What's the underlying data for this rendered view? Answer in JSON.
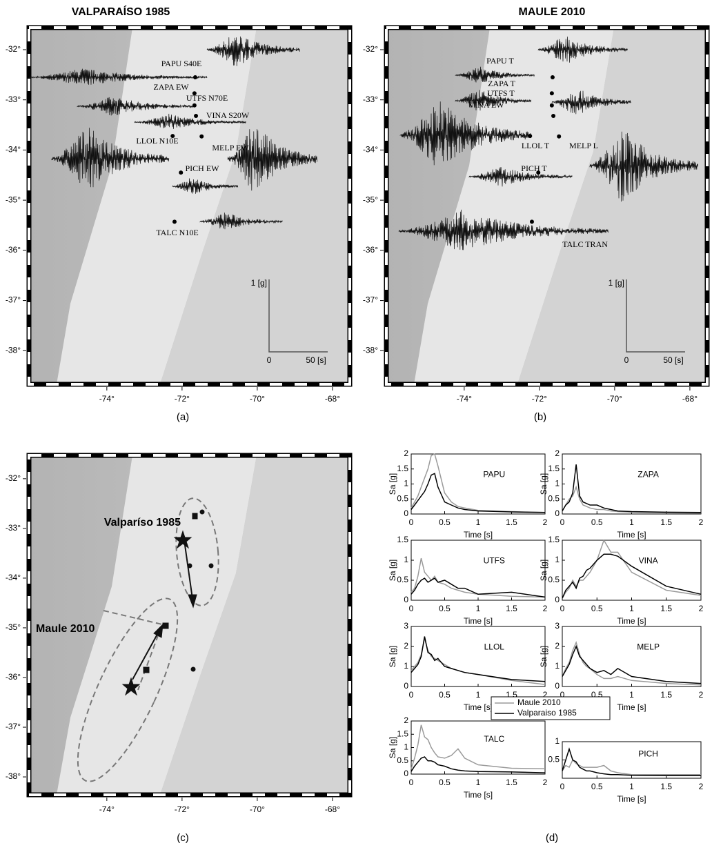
{
  "maps": [
    {
      "title": "VALPARAÍSO 1985",
      "label": "(a)",
      "xlim": [
        -76.07,
        -67.54
      ],
      "ylim": [
        -31.56,
        -38.67
      ],
      "xticks": [
        {
          "value": -74,
          "label": "-74°"
        },
        {
          "value": -72,
          "label": "-72°"
        },
        {
          "value": -70,
          "label": "-70°"
        },
        {
          "value": -68,
          "label": "-68°"
        }
      ],
      "yticks": [
        {
          "value": -32,
          "label": "-32°"
        },
        {
          "value": -33,
          "label": "-33°"
        },
        {
          "value": -34,
          "label": "-34°"
        },
        {
          "value": -35,
          "label": "-35°"
        },
        {
          "value": -36,
          "label": "-36°"
        },
        {
          "value": -37,
          "label": "-37°"
        },
        {
          "value": -38,
          "label": "-38°"
        }
      ],
      "scale": {
        "amplitude": "1 [g]",
        "origin": "0",
        "time": "50 [s]"
      },
      "stations": [
        {
          "label": "PAPU S40E",
          "lon": -71.65,
          "lat": -32.55
        },
        {
          "label": "ZAPA EW",
          "lon": -71.67,
          "lat": -32.87
        },
        {
          "label": "UTFS N70E",
          "lon": -71.67,
          "lat": -33.11
        },
        {
          "label": "VINA S20W",
          "lon": -71.63,
          "lat": -33.32
        },
        {
          "label": "LLOL N10E",
          "lon": -72.25,
          "lat": -33.72
        },
        {
          "label": "MELP EW",
          "lon": -71.48,
          "lat": -33.73
        },
        {
          "label": "PICH EW",
          "lon": -72.03,
          "lat": -34.45
        },
        {
          "label": "TALC N10E",
          "lon": -72.2,
          "lat": -35.43
        }
      ]
    },
    {
      "title": "MAULE 2010",
      "label": "(b)",
      "xlim": [
        -76.07,
        -67.54
      ],
      "ylim": [
        -31.56,
        -38.67
      ],
      "xticks": [
        {
          "value": -74,
          "label": "-74°"
        },
        {
          "value": -72,
          "label": "-72°"
        },
        {
          "value": -70,
          "label": "-70°"
        },
        {
          "value": -68,
          "label": "-68°"
        }
      ],
      "yticks": [
        {
          "value": -32,
          "label": "-32°"
        },
        {
          "value": -33,
          "label": "-33°"
        },
        {
          "value": -34,
          "label": "-34°"
        },
        {
          "value": -35,
          "label": "-35°"
        },
        {
          "value": -36,
          "label": "-36°"
        },
        {
          "value": -37,
          "label": "-37°"
        },
        {
          "value": -38,
          "label": "-38°"
        }
      ],
      "scale": {
        "amplitude": "1 [g]",
        "origin": "0",
        "time": "50 [s]"
      },
      "stations": [
        {
          "label": "PAPU T",
          "lon": -71.65,
          "lat": -32.55
        },
        {
          "label": "ZAPA T",
          "lon": -71.67,
          "lat": -32.87
        },
        {
          "label": "UTFS T",
          "lon": -71.67,
          "lat": -33.11
        },
        {
          "label": "VINA EW",
          "lon": -71.63,
          "lat": -33.32
        },
        {
          "label": "LLOL T",
          "lon": -72.25,
          "lat": -33.72
        },
        {
          "label": "MELP L",
          "lon": -71.48,
          "lat": -33.73
        },
        {
          "label": "PICH T",
          "lon": -72.03,
          "lat": -34.45
        },
        {
          "label": "TALC TRAN",
          "lon": -72.2,
          "lat": -35.43
        }
      ]
    },
    {
      "label": "(c)",
      "xlim": [
        -76.07,
        -67.54
      ],
      "ylim": [
        -31.53,
        -38.36
      ],
      "xticks": [
        {
          "value": -74,
          "label": "-74°"
        },
        {
          "value": -72,
          "label": "-72°"
        },
        {
          "value": -70,
          "label": "-70°"
        },
        {
          "value": -68,
          "label": "-68°"
        }
      ],
      "yticks": [
        {
          "value": -32,
          "label": "-32°"
        },
        {
          "value": -33,
          "label": "-33°"
        },
        {
          "value": -34,
          "label": "-34°"
        },
        {
          "value": -35,
          "label": "-35°"
        },
        {
          "value": -36,
          "label": "-36°"
        },
        {
          "value": -37,
          "label": "-37°"
        },
        {
          "value": -38,
          "label": "-38°"
        }
      ],
      "annotations": [
        "Valparíso 1985",
        "Maule 2010"
      ]
    }
  ],
  "panel_d": {
    "label": "(d)",
    "legend": [
      {
        "name": "Maule 2010",
        "color": "#9a9a9a"
      },
      {
        "name": "Valparaiso 1985",
        "color": "#000000"
      }
    ]
  },
  "chart_data": [
    {
      "type": "line",
      "title": "PAPU",
      "ylabel": "Sa [g]",
      "xlabel": "Time [s]",
      "x": [
        0,
        0.05,
        0.1,
        0.15,
        0.2,
        0.25,
        0.3,
        0.35,
        0.4,
        0.5,
        0.6,
        0.7,
        0.8,
        1,
        1.5,
        2
      ],
      "series": [
        {
          "values": [
            0.2,
            0.4,
            0.6,
            0.9,
            1.2,
            1.5,
            1.95,
            2.0,
            1.6,
            0.7,
            0.4,
            0.25,
            0.2,
            0.12,
            0.08,
            0.05
          ]
        },
        {
          "values": [
            0.15,
            0.3,
            0.45,
            0.6,
            0.75,
            1.0,
            1.3,
            1.35,
            0.9,
            0.4,
            0.3,
            0.2,
            0.15,
            0.1,
            0.07,
            0.05
          ]
        }
      ],
      "xlim": [
        0,
        2
      ],
      "xticks": [
        0,
        0.5,
        1,
        1.5,
        2
      ],
      "ylim": [
        0,
        2
      ],
      "yticks": [
        0,
        0.5,
        1,
        1.5,
        2
      ]
    },
    {
      "type": "line",
      "title": "ZAPA",
      "ylabel": "Sa [g]",
      "xlabel": "Time [s]",
      "x": [
        0,
        0.05,
        0.1,
        0.15,
        0.2,
        0.25,
        0.3,
        0.35,
        0.4,
        0.5,
        0.6,
        0.7,
        0.8,
        1,
        1.5,
        2
      ],
      "series": [
        {
          "values": [
            0.1,
            0.3,
            0.5,
            0.6,
            0.9,
            0.5,
            0.3,
            0.25,
            0.2,
            0.15,
            0.15,
            0.1,
            0.08,
            0.06,
            0.04,
            0.03
          ]
        },
        {
          "values": [
            0.1,
            0.3,
            0.4,
            0.7,
            1.65,
            0.6,
            0.4,
            0.35,
            0.3,
            0.3,
            0.2,
            0.15,
            0.1,
            0.08,
            0.06,
            0.05
          ]
        }
      ],
      "xlim": [
        0,
        2
      ],
      "xticks": [
        0,
        0.5,
        1,
        1.5,
        2
      ],
      "ylim": [
        0,
        2
      ],
      "yticks": [
        0,
        0.5,
        1,
        1.5,
        2
      ]
    },
    {
      "type": "line",
      "title": "UTFS",
      "ylabel": "Sa [g]",
      "xlabel": "Time [s]",
      "x": [
        0,
        0.05,
        0.1,
        0.15,
        0.2,
        0.25,
        0.3,
        0.35,
        0.4,
        0.5,
        0.6,
        0.7,
        0.8,
        1,
        1.5,
        2
      ],
      "series": [
        {
          "values": [
            0.2,
            0.3,
            0.6,
            1.05,
            0.7,
            0.6,
            0.5,
            0.6,
            0.45,
            0.4,
            0.3,
            0.25,
            0.2,
            0.15,
            0.1,
            0.08
          ]
        },
        {
          "values": [
            0.15,
            0.25,
            0.4,
            0.5,
            0.55,
            0.45,
            0.5,
            0.55,
            0.45,
            0.5,
            0.4,
            0.3,
            0.3,
            0.15,
            0.2,
            0.08
          ]
        }
      ],
      "xlim": [
        0,
        2
      ],
      "xticks": [
        0,
        0.5,
        1,
        1.5,
        2
      ],
      "ylim": [
        0,
        1.5
      ],
      "yticks": [
        0,
        0.5,
        1,
        1.5
      ]
    },
    {
      "type": "line",
      "title": "VINA",
      "ylabel": "Sa [g]",
      "xlabel": "Time [s]",
      "x": [
        0,
        0.05,
        0.1,
        0.15,
        0.2,
        0.25,
        0.3,
        0.35,
        0.4,
        0.5,
        0.6,
        0.7,
        0.8,
        1,
        1.5,
        2
      ],
      "series": [
        {
          "values": [
            0.05,
            0.2,
            0.3,
            0.5,
            0.35,
            0.5,
            0.5,
            0.6,
            0.7,
            1.0,
            1.5,
            1.2,
            1.2,
            0.7,
            0.25,
            0.12
          ]
        },
        {
          "values": [
            0.05,
            0.25,
            0.35,
            0.45,
            0.3,
            0.55,
            0.6,
            0.75,
            0.8,
            1.0,
            1.15,
            1.15,
            1.1,
            0.85,
            0.35,
            0.15
          ]
        }
      ],
      "xlim": [
        0,
        2
      ],
      "xticks": [
        0,
        0.5,
        1,
        1.5,
        2
      ],
      "ylim": [
        0,
        1.5
      ],
      "yticks": [
        0,
        0.5,
        1,
        1.5
      ]
    },
    {
      "type": "line",
      "title": "LLOL",
      "ylabel": "Sa [g]",
      "xlabel": "Time [s]",
      "x": [
        0,
        0.05,
        0.1,
        0.15,
        0.2,
        0.25,
        0.3,
        0.35,
        0.4,
        0.5,
        0.6,
        0.7,
        0.8,
        1,
        1.5,
        2
      ],
      "series": [
        {
          "values": [
            0.8,
            1.0,
            1.2,
            1.6,
            2.4,
            1.8,
            1.5,
            1.4,
            1.3,
            1.1,
            0.9,
            0.8,
            0.7,
            0.6,
            0.3,
            0.1
          ]
        },
        {
          "values": [
            0.7,
            0.9,
            1.1,
            1.5,
            2.5,
            1.7,
            1.6,
            1.3,
            1.4,
            1.0,
            0.9,
            0.8,
            0.7,
            0.6,
            0.35,
            0.25
          ]
        }
      ],
      "xlim": [
        0,
        2
      ],
      "xticks": [
        0,
        0.5,
        1,
        1.5,
        2
      ],
      "ylim": [
        0,
        3
      ],
      "yticks": [
        0,
        1,
        2,
        3
      ]
    },
    {
      "type": "line",
      "title": "MELP",
      "ylabel": "Sa [g]",
      "xlabel": "Time [s]",
      "x": [
        0,
        0.05,
        0.1,
        0.15,
        0.2,
        0.25,
        0.3,
        0.35,
        0.4,
        0.5,
        0.6,
        0.7,
        0.8,
        1,
        1.5,
        2
      ],
      "series": [
        {
          "values": [
            0.5,
            0.9,
            1.2,
            1.8,
            2.2,
            1.6,
            1.2,
            1.0,
            0.9,
            0.6,
            0.4,
            0.4,
            0.5,
            0.3,
            0.15,
            0.08
          ]
        },
        {
          "values": [
            0.5,
            0.8,
            1.1,
            1.6,
            2.0,
            1.5,
            1.3,
            1.1,
            0.9,
            0.7,
            0.8,
            0.6,
            0.9,
            0.5,
            0.25,
            0.15
          ]
        }
      ],
      "xlim": [
        0,
        2
      ],
      "xticks": [
        0,
        0.5,
        1,
        1.5,
        2
      ],
      "ylim": [
        0,
        3
      ],
      "yticks": [
        0,
        1,
        2,
        3
      ]
    },
    {
      "type": "line",
      "title": "TALC",
      "ylabel": "Sa [g]",
      "xlabel": "Time [s]",
      "x": [
        0,
        0.05,
        0.1,
        0.15,
        0.2,
        0.25,
        0.3,
        0.35,
        0.4,
        0.5,
        0.6,
        0.7,
        0.8,
        1,
        1.5,
        2
      ],
      "series": [
        {
          "values": [
            0.2,
            0.6,
            1.1,
            1.85,
            1.4,
            1.3,
            1.0,
            0.8,
            0.65,
            0.6,
            0.7,
            0.95,
            0.6,
            0.35,
            0.22,
            0.2
          ]
        },
        {
          "values": [
            0.1,
            0.3,
            0.45,
            0.6,
            0.65,
            0.5,
            0.5,
            0.45,
            0.35,
            0.3,
            0.2,
            0.15,
            0.12,
            0.1,
            0.08,
            0.05
          ]
        }
      ],
      "xlim": [
        0,
        2
      ],
      "xticks": [
        0,
        0.5,
        1,
        1.5,
        2
      ],
      "ylim": [
        0,
        2
      ],
      "yticks": [
        0,
        0.5,
        1,
        1.5,
        2
      ]
    },
    {
      "type": "line",
      "title": "PICH",
      "xlabel": "Time [s]",
      "x": [
        0,
        0.05,
        0.1,
        0.15,
        0.2,
        0.25,
        0.3,
        0.35,
        0.4,
        0.5,
        0.6,
        0.7,
        0.8,
        1,
        1.5,
        2
      ],
      "series": [
        {
          "values": [
            0.2,
            0.35,
            0.3,
            0.5,
            0.4,
            0.35,
            0.3,
            0.3,
            0.3,
            0.3,
            0.35,
            0.2,
            0.15,
            0.1,
            0.1,
            0.1
          ]
        },
        {
          "values": [
            0.2,
            0.5,
            0.8,
            0.5,
            0.45,
            0.3,
            0.25,
            0.2,
            0.2,
            0.15,
            0.12,
            0.1,
            0.1,
            0.08,
            0.07,
            0.07
          ]
        }
      ],
      "xlim": [
        0,
        2
      ],
      "xticks": [
        0,
        0.5,
        1,
        1.5,
        2
      ],
      "ylim": [
        0,
        1
      ],
      "yticks": [
        0.5,
        1
      ]
    }
  ]
}
